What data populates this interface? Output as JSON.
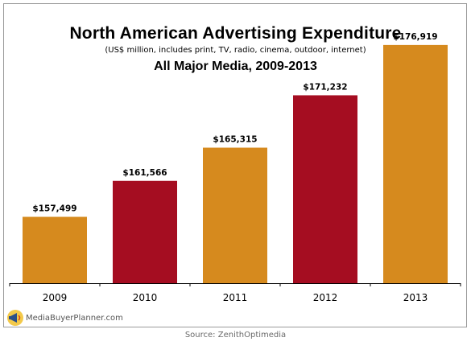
{
  "chart_data": {
    "type": "bar",
    "title": "North American Advertising Expenditure",
    "subtitle": "(US$ million,  includes print, TV, radio, cinema, outdoor, internet)",
    "subtitle2": "All Major Media, 2009-2013",
    "categories": [
      "2009",
      "2010",
      "2011",
      "2012",
      "2013"
    ],
    "values": [
      157499,
      161566,
      165315,
      171232,
      176919
    ],
    "value_labels": [
      "$157,499",
      "$161,566",
      "$165,315",
      "$171,232",
      "$176,919"
    ],
    "bar_colors": [
      "#d68a1e",
      "#a50d21",
      "#d68a1e",
      "#a50d21",
      "#d68a1e"
    ],
    "ylim": [
      150000,
      180000
    ],
    "xlabel": "",
    "ylabel": "",
    "grid": false,
    "legend": "none"
  },
  "branding": {
    "logo_text": "MediaBuyerPlanner.com",
    "source": "Source:  ZenithOptimedia"
  }
}
